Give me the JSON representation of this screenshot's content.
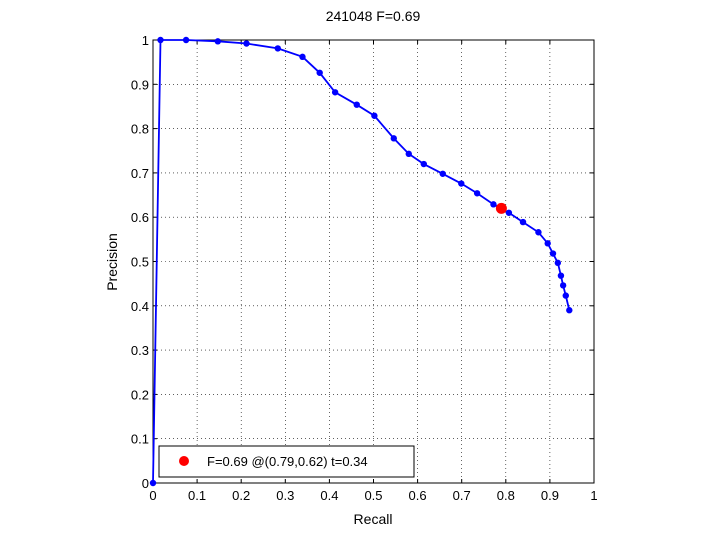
{
  "chart_data": {
    "type": "line",
    "title": "241048 F=0.69",
    "xlabel": "Recall",
    "ylabel": "Precision",
    "xlim": [
      0,
      1
    ],
    "ylim": [
      0,
      1
    ],
    "grid": true,
    "xticks": [
      "0",
      "0.1",
      "0.2",
      "0.3",
      "0.4",
      "0.5",
      "0.6",
      "0.7",
      "0.8",
      "0.9",
      "1"
    ],
    "yticks": [
      "0",
      "0.1",
      "0.2",
      "0.3",
      "0.4",
      "0.5",
      "0.6",
      "0.7",
      "0.8",
      "0.9",
      "1"
    ],
    "series": [
      {
        "color": "#0000ff",
        "x": [
          0.0,
          0.017,
          0.075,
          0.147,
          0.212,
          0.283,
          0.339,
          0.378,
          0.413,
          0.462,
          0.502,
          0.546,
          0.58,
          0.614,
          0.657,
          0.699,
          0.735,
          0.772,
          0.807,
          0.839,
          0.874,
          0.895,
          0.907,
          0.918,
          0.925,
          0.93,
          0.936,
          0.944
        ],
        "y": [
          0.0,
          1.0,
          1.0,
          0.997,
          0.992,
          0.981,
          0.962,
          0.926,
          0.882,
          0.854,
          0.829,
          0.778,
          0.743,
          0.72,
          0.698,
          0.676,
          0.654,
          0.629,
          0.61,
          0.589,
          0.566,
          0.541,
          0.518,
          0.497,
          0.468,
          0.446,
          0.423,
          0.39
        ]
      }
    ],
    "highlight": {
      "x": 0.79,
      "y": 0.62,
      "color": "#ff0000"
    },
    "legend": {
      "position": "bottom-left",
      "text": "F=0.69 @(0.79,0.62) t=0.34",
      "marker_color": "#ff0000"
    }
  }
}
